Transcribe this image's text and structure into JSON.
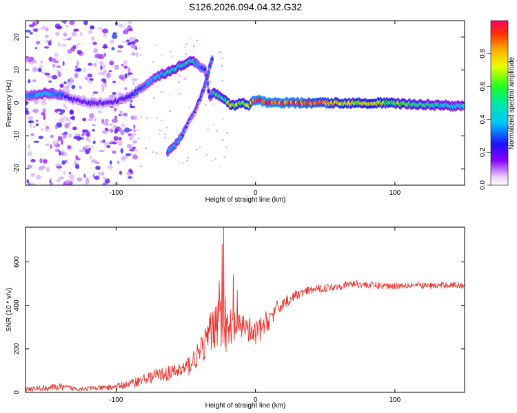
{
  "title": "S126.2026.094.04.32.G32",
  "chart_data": [
    {
      "type": "heatmap",
      "name": "spectrogram",
      "xlabel": "Height of straight line (km)",
      "ylabel": "Frequency (Hz)",
      "xlim": [
        -165,
        150
      ],
      "ylim": [
        -25,
        25
      ],
      "x_ticks": [
        -100,
        0,
        100
      ],
      "x_tick_labels": [
        "-100",
        "0",
        "100"
      ],
      "y_ticks": [
        -20,
        -10,
        0,
        10,
        20
      ],
      "y_tick_labels": [
        "-20",
        "-10",
        "0",
        "10",
        "20"
      ],
      "ridge": {
        "x": [
          -165,
          -150,
          -140,
          -130,
          -120,
          -110,
          -100,
          -90,
          -80,
          -70,
          -60,
          -55,
          -50,
          -45,
          -40,
          -36,
          -33,
          -30,
          -28,
          -25,
          -20,
          -15,
          -10,
          -5,
          0,
          10,
          30,
          60,
          90,
          120,
          150
        ],
        "frequency_hz": [
          2,
          3,
          2.5,
          1,
          0,
          0,
          0.5,
          2,
          5,
          8,
          10,
          11,
          12,
          13,
          11,
          10,
          2,
          3,
          2.5,
          2,
          0,
          -1,
          0,
          -1,
          1,
          0,
          0,
          0,
          0,
          -0.5,
          -1
        ],
        "amplitude": [
          0.3,
          0.4,
          0.3,
          0.2,
          0.2,
          0.2,
          0.2,
          0.25,
          0.3,
          0.4,
          0.45,
          0.45,
          0.45,
          0.45,
          0.3,
          0.3,
          0.25,
          0.5,
          0.55,
          0.5,
          0.6,
          0.7,
          0.6,
          0.8,
          0.95,
          0.95,
          0.9,
          0.75,
          0.7,
          0.5,
          0.4
        ]
      },
      "branch_low": {
        "x": [
          -63,
          -58,
          -53,
          -48,
          -43,
          -38,
          -34,
          -31
        ],
        "frequency_hz": [
          -15,
          -13,
          -10,
          -6,
          -2,
          3,
          9,
          14
        ],
        "amplitude": [
          0.35,
          0.4,
          0.35,
          0.2,
          0.2,
          0.25,
          0.3,
          0.3
        ]
      },
      "noise_region_x": [
        -165,
        -95
      ],
      "colorbar": {
        "label": "Normalized spectral amplitude",
        "range": [
          0,
          1
        ],
        "ticks": [
          0.0,
          0.2,
          0.4,
          0.6,
          0.8
        ],
        "tick_labels": [
          "0.0",
          "0.2",
          "0.4",
          "0.6",
          "0.8"
        ]
      }
    },
    {
      "type": "line",
      "name": "snr",
      "xlabel": "Height of straight line (km)",
      "ylabel": "SNR (10 * v/v)",
      "xlim": [
        -165,
        150
      ],
      "ylim": [
        0,
        760
      ],
      "x_ticks": [
        -100,
        0,
        100
      ],
      "x_tick_labels": [
        "-100",
        "0",
        "100"
      ],
      "y_ticks": [
        0,
        200,
        400,
        600
      ],
      "y_tick_labels": [
        "0",
        "200",
        "400",
        "600"
      ],
      "color": "#e8342c",
      "series": [
        {
          "name": "SNR",
          "x": [
            -165,
            -150,
            -140,
            -130,
            -120,
            -110,
            -100,
            -90,
            -80,
            -70,
            -60,
            -50,
            -40,
            -35,
            -30,
            -28,
            -26,
            -24,
            -22,
            -20,
            -18,
            -16,
            -14,
            -12,
            -10,
            -8,
            -6,
            -4,
            -2,
            0,
            5,
            10,
            15,
            20,
            25,
            30,
            40,
            50,
            60,
            70,
            80,
            90,
            100,
            110,
            120,
            130,
            140,
            150
          ],
          "y": [
            15,
            20,
            25,
            18,
            18,
            20,
            25,
            40,
            60,
            80,
            90,
            110,
            180,
            240,
            300,
            350,
            400,
            250,
            330,
            260,
            240,
            300,
            300,
            280,
            300,
            320,
            290,
            280,
            260,
            270,
            300,
            340,
            380,
            410,
            430,
            450,
            470,
            480,
            490,
            500,
            495,
            490,
            490,
            495,
            490,
            490,
            495,
            490
          ],
          "spread": [
            10,
            15,
            15,
            12,
            12,
            12,
            15,
            20,
            25,
            30,
            35,
            45,
            60,
            80,
            110,
            140,
            160,
            150,
            130,
            120,
            100,
            90,
            80,
            70,
            70,
            70,
            65,
            65,
            60,
            60,
            55,
            50,
            40,
            30,
            25,
            20,
            20,
            18,
            18,
            18,
            17,
            17,
            16,
            16,
            16,
            15,
            15,
            15
          ],
          "peaks": [
            {
              "x": -23,
              "y": 760
            },
            {
              "x": -24,
              "y": 680
            },
            {
              "x": -16,
              "y": 540
            },
            {
              "x": -18,
              "y": 380
            },
            {
              "x": -13,
              "y": 470
            }
          ]
        }
      ]
    }
  ]
}
